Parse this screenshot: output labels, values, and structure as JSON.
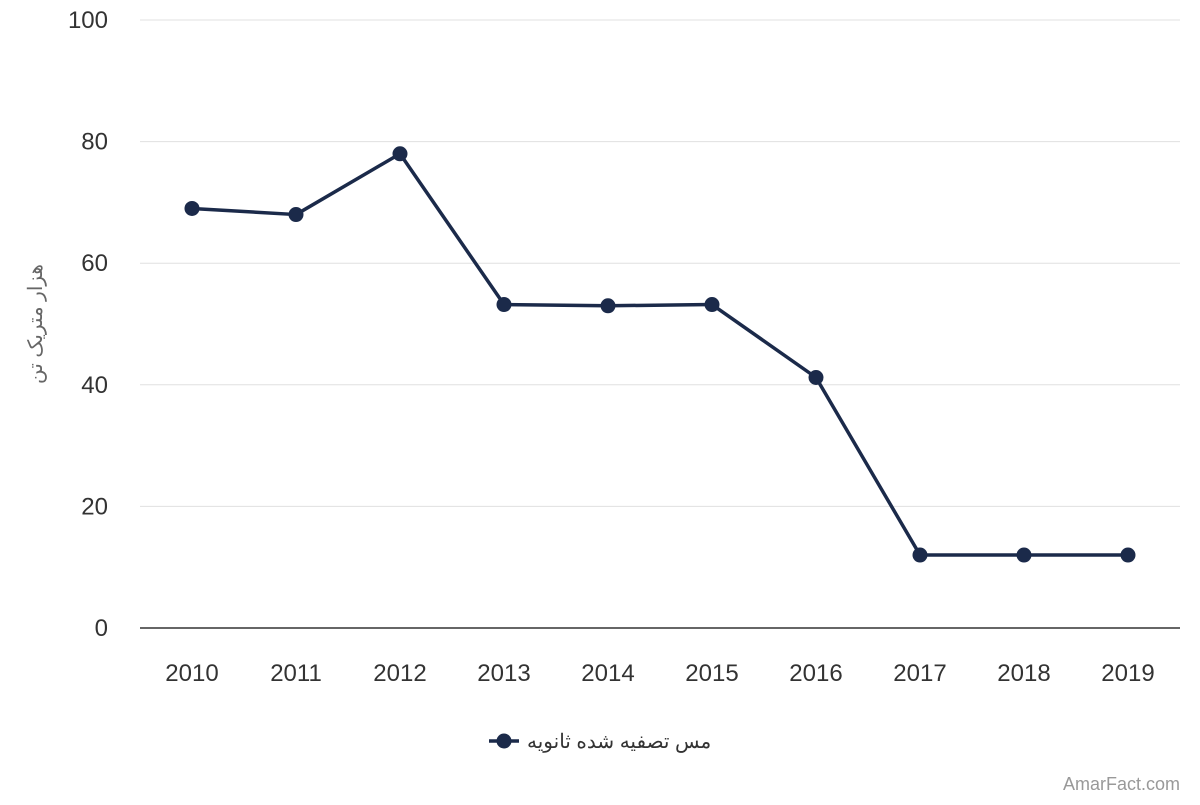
{
  "chart_data": {
    "type": "line",
    "title": "",
    "xlabel": "",
    "ylabel": "هزار متریک تن",
    "categories": [
      "2010",
      "2011",
      "2012",
      "2013",
      "2014",
      "2015",
      "2016",
      "2017",
      "2018",
      "2019"
    ],
    "series": [
      {
        "name": "مس تصفیه شده ثانویه",
        "values": [
          69,
          68,
          78,
          53.2,
          53,
          53.2,
          41.2,
          12,
          12,
          12
        ],
        "color": "#1b2a4a"
      }
    ],
    "ylim": [
      0,
      100
    ],
    "yticks": [
      0,
      20,
      40,
      60,
      80,
      100
    ],
    "grid": true,
    "legend": "bottom-center"
  },
  "watermark": "AmarFact.com",
  "colors": {
    "series": "#1b2a4a",
    "grid": "#e0e0e0",
    "axis": "#333333",
    "tick_text": "#333333",
    "ylabel_text": "#666666",
    "watermark_text": "#999999"
  }
}
